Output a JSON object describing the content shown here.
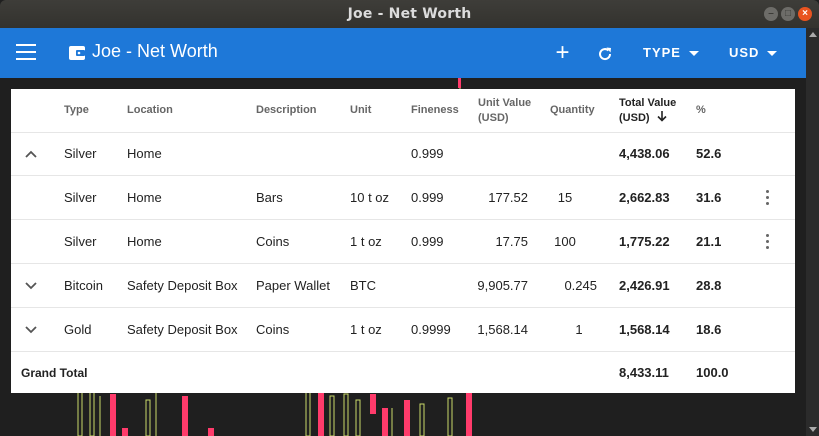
{
  "window": {
    "title": "Joe - Net Worth"
  },
  "appbar": {
    "title": "Joe - Net Worth",
    "add_label": "+",
    "type_label": "TYPE",
    "currency_label": "USD"
  },
  "colors": {
    "appbar": "#1e78d8",
    "candle_up": "#c8d86a",
    "candle_down": "#ff3b6b"
  },
  "table": {
    "headers": {
      "type": "Type",
      "location": "Location",
      "description": "Description",
      "unit": "Unit",
      "fineness": "Fineness",
      "unit_value_1": "Unit Value",
      "unit_value_2": "(USD)",
      "quantity": "Quantity",
      "total_value_1": "Total Value",
      "total_value_2": "(USD)",
      "percent": "%"
    },
    "rows": [
      {
        "expand": "up",
        "type": "Silver",
        "location": "Home",
        "description": "",
        "unit": "",
        "fineness": "0.999",
        "unit_value": "",
        "quantity": "",
        "total_value": "4,438.06",
        "percent": "52.6",
        "menu": false
      },
      {
        "expand": "",
        "type": "Silver",
        "location": "Home",
        "description": "Bars",
        "unit": "10 t oz",
        "fineness": "0.999",
        "unit_value": "177.52",
        "quantity": "15",
        "total_value": "2,662.83",
        "percent": "31.6",
        "menu": true
      },
      {
        "expand": "",
        "type": "Silver",
        "location": "Home",
        "description": "Coins",
        "unit": "1 t oz",
        "fineness": "0.999",
        "unit_value": "17.75",
        "quantity": "100",
        "total_value": "1,775.22",
        "percent": "21.1",
        "menu": true
      },
      {
        "expand": "down",
        "type": "Bitcoin",
        "location": "Safety Deposit Box",
        "description": "Paper Wallet",
        "unit": "BTC",
        "fineness": "",
        "unit_value": "9,905.77",
        "quantity": "0.245",
        "total_value": "2,426.91",
        "percent": "28.8",
        "menu": false
      },
      {
        "expand": "down",
        "type": "Gold",
        "location": "Safety Deposit Box",
        "description": "Coins",
        "unit": "1 t oz",
        "fineness": "0.9999",
        "unit_value": "1,568.14",
        "quantity": "1",
        "total_value": "1,568.14",
        "percent": "18.6",
        "menu": false
      }
    ],
    "grand_total": {
      "label": "Grand Total",
      "total_value": "8,433.11",
      "percent": "100.0"
    }
  }
}
